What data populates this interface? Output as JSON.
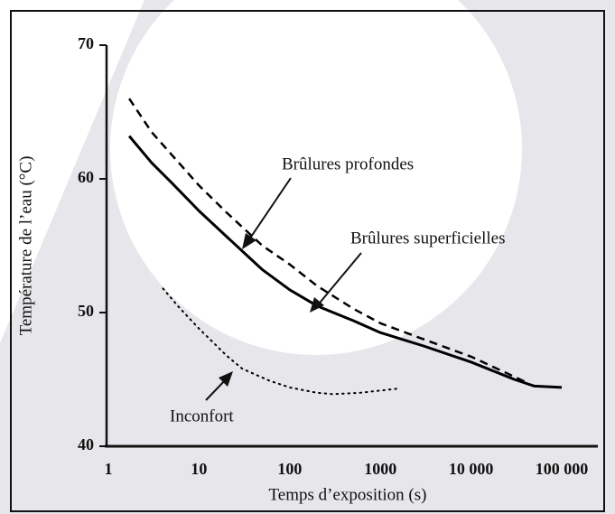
{
  "chart_data": {
    "type": "line",
    "xlabel": "Temps d’exposition (s)",
    "ylabel": "Température de l’eau  (°C)",
    "xscale": "log",
    "xlim": [
      1,
      250000
    ],
    "ylim": [
      40,
      70
    ],
    "xticks": [
      1,
      10,
      100,
      1000,
      {
        "value": 10000,
        "label": "10 000"
      },
      {
        "value": 100000,
        "label": "100 000"
      }
    ],
    "yticks": [
      40,
      50,
      60,
      70
    ],
    "series": [
      {
        "name": "Brûlures superficielles",
        "color": "#000000",
        "style": "solid",
        "x": [
          1.7,
          3,
          5,
          10,
          20,
          50,
          100,
          200,
          500,
          1000,
          3000,
          10000,
          30000,
          50000,
          100000
        ],
        "values": [
          63.2,
          61.2,
          59.7,
          57.6,
          55.7,
          53.2,
          51.7,
          50.5,
          49.4,
          48.5,
          47.5,
          46.3,
          45.0,
          44.5,
          44.4
        ]
      },
      {
        "name": "Brûlures profondes",
        "color": "#000000",
        "style": "dashed",
        "x": [
          1.7,
          3,
          5,
          10,
          20,
          50,
          100,
          200,
          500,
          1000,
          3000,
          10000,
          30000,
          40000
        ],
        "values": [
          66.0,
          63.5,
          61.8,
          59.5,
          57.5,
          55.0,
          53.6,
          52.0,
          50.3,
          49.2,
          48.0,
          46.7,
          45.2,
          44.8
        ]
      },
      {
        "name": "Inconfort",
        "color": "#000000",
        "style": "dotted",
        "x": [
          4,
          6,
          10,
          20,
          30,
          60,
          100,
          200,
          300,
          600,
          1500
        ],
        "values": [
          51.8,
          50.4,
          48.8,
          46.8,
          45.8,
          44.9,
          44.4,
          44.0,
          43.9,
          44.0,
          44.3
        ]
      }
    ]
  }
}
